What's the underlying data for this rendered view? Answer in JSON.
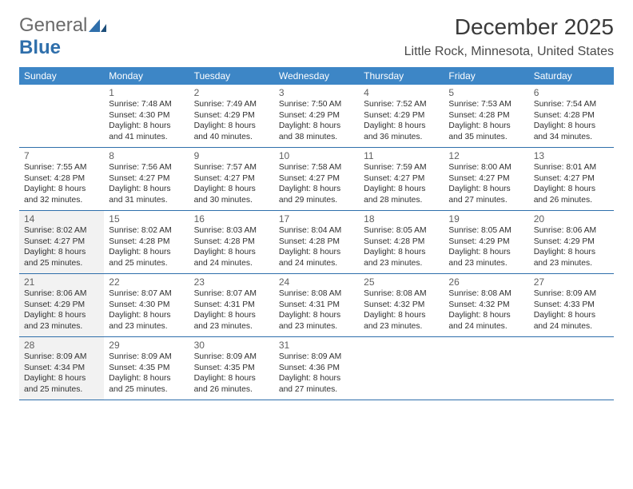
{
  "brand": {
    "part1": "General",
    "part2": "Blue"
  },
  "title": "December 2025",
  "location": "Little Rock, Minnesota, United States",
  "colors": {
    "header_bg": "#3d86c6",
    "header_text": "#ffffff",
    "rule": "#2f6fab",
    "shade": "#f2f2f2",
    "text": "#303030",
    "daynum": "#606060"
  },
  "typography": {
    "title_fontsize": 28,
    "location_fontsize": 16,
    "dayheader_fontsize": 12,
    "daynum_fontsize": 12,
    "body_fontsize": 10.3
  },
  "day_headers": [
    "Sunday",
    "Monday",
    "Tuesday",
    "Wednesday",
    "Thursday",
    "Friday",
    "Saturday"
  ],
  "weeks": [
    [
      {
        "n": "",
        "sunrise": "",
        "sunset": "",
        "daylight1": "",
        "daylight2": "",
        "shaded": false
      },
      {
        "n": "1",
        "sunrise": "Sunrise: 7:48 AM",
        "sunset": "Sunset: 4:30 PM",
        "daylight1": "Daylight: 8 hours",
        "daylight2": "and 41 minutes.",
        "shaded": false
      },
      {
        "n": "2",
        "sunrise": "Sunrise: 7:49 AM",
        "sunset": "Sunset: 4:29 PM",
        "daylight1": "Daylight: 8 hours",
        "daylight2": "and 40 minutes.",
        "shaded": false
      },
      {
        "n": "3",
        "sunrise": "Sunrise: 7:50 AM",
        "sunset": "Sunset: 4:29 PM",
        "daylight1": "Daylight: 8 hours",
        "daylight2": "and 38 minutes.",
        "shaded": false
      },
      {
        "n": "4",
        "sunrise": "Sunrise: 7:52 AM",
        "sunset": "Sunset: 4:29 PM",
        "daylight1": "Daylight: 8 hours",
        "daylight2": "and 36 minutes.",
        "shaded": false
      },
      {
        "n": "5",
        "sunrise": "Sunrise: 7:53 AM",
        "sunset": "Sunset: 4:28 PM",
        "daylight1": "Daylight: 8 hours",
        "daylight2": "and 35 minutes.",
        "shaded": false
      },
      {
        "n": "6",
        "sunrise": "Sunrise: 7:54 AM",
        "sunset": "Sunset: 4:28 PM",
        "daylight1": "Daylight: 8 hours",
        "daylight2": "and 34 minutes.",
        "shaded": false
      }
    ],
    [
      {
        "n": "7",
        "sunrise": "Sunrise: 7:55 AM",
        "sunset": "Sunset: 4:28 PM",
        "daylight1": "Daylight: 8 hours",
        "daylight2": "and 32 minutes.",
        "shaded": false
      },
      {
        "n": "8",
        "sunrise": "Sunrise: 7:56 AM",
        "sunset": "Sunset: 4:27 PM",
        "daylight1": "Daylight: 8 hours",
        "daylight2": "and 31 minutes.",
        "shaded": false
      },
      {
        "n": "9",
        "sunrise": "Sunrise: 7:57 AM",
        "sunset": "Sunset: 4:27 PM",
        "daylight1": "Daylight: 8 hours",
        "daylight2": "and 30 minutes.",
        "shaded": false
      },
      {
        "n": "10",
        "sunrise": "Sunrise: 7:58 AM",
        "sunset": "Sunset: 4:27 PM",
        "daylight1": "Daylight: 8 hours",
        "daylight2": "and 29 minutes.",
        "shaded": false
      },
      {
        "n": "11",
        "sunrise": "Sunrise: 7:59 AM",
        "sunset": "Sunset: 4:27 PM",
        "daylight1": "Daylight: 8 hours",
        "daylight2": "and 28 minutes.",
        "shaded": false
      },
      {
        "n": "12",
        "sunrise": "Sunrise: 8:00 AM",
        "sunset": "Sunset: 4:27 PM",
        "daylight1": "Daylight: 8 hours",
        "daylight2": "and 27 minutes.",
        "shaded": false
      },
      {
        "n": "13",
        "sunrise": "Sunrise: 8:01 AM",
        "sunset": "Sunset: 4:27 PM",
        "daylight1": "Daylight: 8 hours",
        "daylight2": "and 26 minutes.",
        "shaded": false
      }
    ],
    [
      {
        "n": "14",
        "sunrise": "Sunrise: 8:02 AM",
        "sunset": "Sunset: 4:27 PM",
        "daylight1": "Daylight: 8 hours",
        "daylight2": "and 25 minutes.",
        "shaded": true
      },
      {
        "n": "15",
        "sunrise": "Sunrise: 8:02 AM",
        "sunset": "Sunset: 4:28 PM",
        "daylight1": "Daylight: 8 hours",
        "daylight2": "and 25 minutes.",
        "shaded": false
      },
      {
        "n": "16",
        "sunrise": "Sunrise: 8:03 AM",
        "sunset": "Sunset: 4:28 PM",
        "daylight1": "Daylight: 8 hours",
        "daylight2": "and 24 minutes.",
        "shaded": false
      },
      {
        "n": "17",
        "sunrise": "Sunrise: 8:04 AM",
        "sunset": "Sunset: 4:28 PM",
        "daylight1": "Daylight: 8 hours",
        "daylight2": "and 24 minutes.",
        "shaded": false
      },
      {
        "n": "18",
        "sunrise": "Sunrise: 8:05 AM",
        "sunset": "Sunset: 4:28 PM",
        "daylight1": "Daylight: 8 hours",
        "daylight2": "and 23 minutes.",
        "shaded": false
      },
      {
        "n": "19",
        "sunrise": "Sunrise: 8:05 AM",
        "sunset": "Sunset: 4:29 PM",
        "daylight1": "Daylight: 8 hours",
        "daylight2": "and 23 minutes.",
        "shaded": false
      },
      {
        "n": "20",
        "sunrise": "Sunrise: 8:06 AM",
        "sunset": "Sunset: 4:29 PM",
        "daylight1": "Daylight: 8 hours",
        "daylight2": "and 23 minutes.",
        "shaded": false
      }
    ],
    [
      {
        "n": "21",
        "sunrise": "Sunrise: 8:06 AM",
        "sunset": "Sunset: 4:29 PM",
        "daylight1": "Daylight: 8 hours",
        "daylight2": "and 23 minutes.",
        "shaded": true
      },
      {
        "n": "22",
        "sunrise": "Sunrise: 8:07 AM",
        "sunset": "Sunset: 4:30 PM",
        "daylight1": "Daylight: 8 hours",
        "daylight2": "and 23 minutes.",
        "shaded": false
      },
      {
        "n": "23",
        "sunrise": "Sunrise: 8:07 AM",
        "sunset": "Sunset: 4:31 PM",
        "daylight1": "Daylight: 8 hours",
        "daylight2": "and 23 minutes.",
        "shaded": false
      },
      {
        "n": "24",
        "sunrise": "Sunrise: 8:08 AM",
        "sunset": "Sunset: 4:31 PM",
        "daylight1": "Daylight: 8 hours",
        "daylight2": "and 23 minutes.",
        "shaded": false
      },
      {
        "n": "25",
        "sunrise": "Sunrise: 8:08 AM",
        "sunset": "Sunset: 4:32 PM",
        "daylight1": "Daylight: 8 hours",
        "daylight2": "and 23 minutes.",
        "shaded": false
      },
      {
        "n": "26",
        "sunrise": "Sunrise: 8:08 AM",
        "sunset": "Sunset: 4:32 PM",
        "daylight1": "Daylight: 8 hours",
        "daylight2": "and 24 minutes.",
        "shaded": false
      },
      {
        "n": "27",
        "sunrise": "Sunrise: 8:09 AM",
        "sunset": "Sunset: 4:33 PM",
        "daylight1": "Daylight: 8 hours",
        "daylight2": "and 24 minutes.",
        "shaded": false
      }
    ],
    [
      {
        "n": "28",
        "sunrise": "Sunrise: 8:09 AM",
        "sunset": "Sunset: 4:34 PM",
        "daylight1": "Daylight: 8 hours",
        "daylight2": "and 25 minutes.",
        "shaded": true
      },
      {
        "n": "29",
        "sunrise": "Sunrise: 8:09 AM",
        "sunset": "Sunset: 4:35 PM",
        "daylight1": "Daylight: 8 hours",
        "daylight2": "and 25 minutes.",
        "shaded": false
      },
      {
        "n": "30",
        "sunrise": "Sunrise: 8:09 AM",
        "sunset": "Sunset: 4:35 PM",
        "daylight1": "Daylight: 8 hours",
        "daylight2": "and 26 minutes.",
        "shaded": false
      },
      {
        "n": "31",
        "sunrise": "Sunrise: 8:09 AM",
        "sunset": "Sunset: 4:36 PM",
        "daylight1": "Daylight: 8 hours",
        "daylight2": "and 27 minutes.",
        "shaded": false
      },
      {
        "n": "",
        "sunrise": "",
        "sunset": "",
        "daylight1": "",
        "daylight2": "",
        "shaded": false
      },
      {
        "n": "",
        "sunrise": "",
        "sunset": "",
        "daylight1": "",
        "daylight2": "",
        "shaded": false
      },
      {
        "n": "",
        "sunrise": "",
        "sunset": "",
        "daylight1": "",
        "daylight2": "",
        "shaded": false
      }
    ]
  ]
}
